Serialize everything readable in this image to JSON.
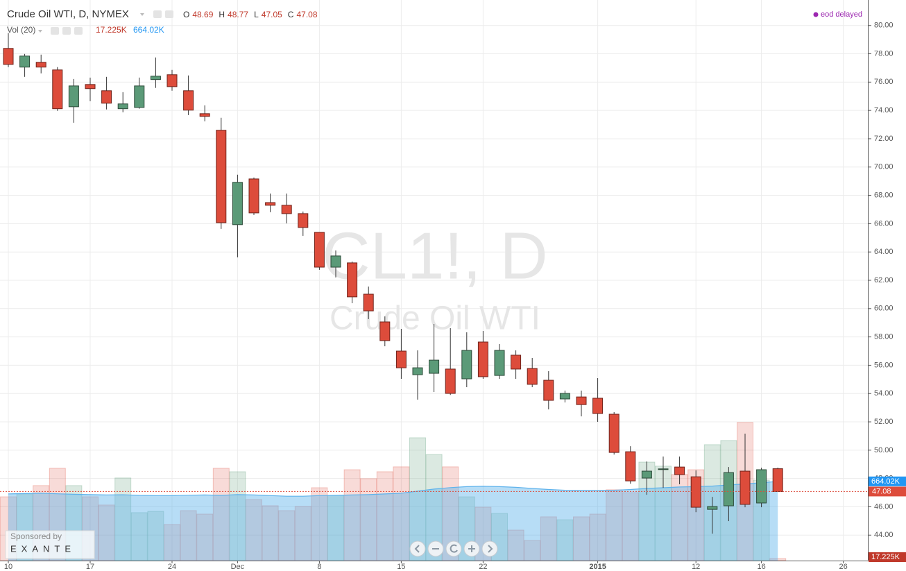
{
  "chart_data": {
    "type": "candlestick",
    "title": "Crude Oil WTI, D, NYMEX",
    "watermark": "CL1!, D",
    "watermark_subtitle": "Crude Oil WTI",
    "status": "eod delayed",
    "ohlc_letters": [
      "O",
      "H",
      "L",
      "C"
    ],
    "sponsor": "Sponsored by",
    "sponsor_name": "EXANTE",
    "categories": [
      "10",
      null,
      null,
      null,
      null,
      "17",
      null,
      null,
      null,
      null,
      "24",
      null,
      null,
      null,
      "Dec",
      null,
      null,
      null,
      null,
      "8",
      null,
      null,
      null,
      null,
      "15",
      null,
      null,
      null,
      null,
      "22",
      null,
      null,
      null,
      null,
      null,
      null,
      "2015",
      null,
      null,
      null,
      null,
      null,
      "12",
      null,
      null,
      null,
      "16",
      null,
      null,
      null,
      null,
      "26"
    ],
    "open": [
      78.38,
      77.06,
      77.4,
      76.86,
      74.26,
      75.83,
      75.39,
      74.12,
      74.21,
      76.18,
      76.52,
      75.39,
      73.77,
      72.6,
      65.93,
      69.16,
      67.49,
      67.3,
      66.71,
      65.39,
      62.93,
      63.23,
      61.02,
      59.06,
      57.0,
      55.33,
      55.43,
      55.73,
      55.04,
      57.64,
      55.28,
      56.71,
      55.77,
      54.94,
      53.62,
      53.76,
      53.67,
      52.54,
      49.89,
      48.03,
      48.63,
      48.81,
      48.12,
      45.82,
      46.07,
      48.52,
      46.27,
      48.69,
      null,
      null,
      null,
      null
    ],
    "high": [
      79.46,
      77.99,
      77.94,
      77.06,
      76.22,
      76.32,
      76.37,
      75.29,
      76.32,
      77.74,
      76.86,
      76.47,
      74.36,
      73.48,
      69.46,
      69.26,
      68.13,
      68.13,
      66.86,
      65.39,
      64.11,
      63.33,
      61.56,
      59.45,
      58.57,
      57.05,
      58.91,
      58.62,
      58.33,
      58.42,
      57.49,
      57.05,
      56.51,
      55.58,
      54.21,
      54.21,
      55.09,
      52.69,
      50.28,
      49.2,
      49.55,
      49.55,
      48.57,
      46.7,
      48.81,
      51.17,
      48.76,
      48.77,
      null,
      null,
      null,
      null
    ],
    "low": [
      77.06,
      76.37,
      76.62,
      73.97,
      73.13,
      74.65,
      74.07,
      73.87,
      74.12,
      75.59,
      75.39,
      73.67,
      73.23,
      65.63,
      63.62,
      66.61,
      66.81,
      66.02,
      65.14,
      62.74,
      62.2,
      60.38,
      59.26,
      57.34,
      55.04,
      53.57,
      54.11,
      53.9,
      54.45,
      55.04,
      55.04,
      55.04,
      54.45,
      52.88,
      53.37,
      52.39,
      52.0,
      49.69,
      47.63,
      46.85,
      47.34,
      47.59,
      45.62,
      44.1,
      44.99,
      45.97,
      45.97,
      47.05,
      null,
      null,
      null,
      null
    ],
    "close": [
      77.25,
      77.84,
      77.06,
      74.12,
      75.73,
      75.54,
      74.51,
      74.46,
      75.73,
      76.42,
      75.68,
      74.02,
      73.58,
      66.07,
      68.92,
      66.76,
      67.3,
      66.71,
      65.73,
      62.93,
      63.72,
      60.83,
      59.84,
      57.74,
      55.82,
      55.82,
      56.36,
      54.01,
      57.05,
      55.19,
      57.05,
      55.73,
      54.65,
      53.52,
      54.01,
      53.22,
      52.59,
      49.84,
      47.83,
      48.52,
      48.68,
      48.27,
      45.97,
      46.02,
      48.42,
      46.17,
      48.62,
      47.08,
      null,
      null,
      null,
      null
    ],
    "up_color": "#5b9a78",
    "down_color": "#dd4c3b",
    "ylim": [
      42.2,
      81.8
    ],
    "yticks": [
      {
        "value": 44,
        "label": "44.00"
      },
      {
        "value": 46,
        "label": "46.00"
      },
      {
        "value": 48,
        "label": "48.00"
      },
      {
        "value": 50,
        "label": "50.00"
      },
      {
        "value": 52,
        "label": "52.00"
      },
      {
        "value": 54,
        "label": "54.00"
      },
      {
        "value": 56,
        "label": "56.00"
      },
      {
        "value": 58,
        "label": "58.00"
      },
      {
        "value": 60,
        "label": "60.00"
      },
      {
        "value": 62,
        "label": "62.00"
      },
      {
        "value": 64,
        "label": "64.00"
      },
      {
        "value": 66,
        "label": "66.00"
      },
      {
        "value": 68,
        "label": "68.00"
      },
      {
        "value": 70,
        "label": "70.00"
      },
      {
        "value": 72,
        "label": "72.00"
      },
      {
        "value": 74,
        "label": "74.00"
      },
      {
        "value": 76,
        "label": "76.00"
      },
      {
        "value": 78,
        "label": "78.00"
      },
      {
        "value": 80,
        "label": "80.00"
      }
    ],
    "grid": true,
    "volume": {
      "name": "Vol (20)",
      "values": [
        535,
        559,
        629,
        774,
        629,
        535,
        466,
        693,
        402,
        413,
        303,
        419,
        390,
        774,
        745,
        512,
        460,
        419,
        454,
        611,
        547,
        762,
        687,
        745,
        786,
        1030,
        890,
        786,
        535,
        448,
        396,
        256,
        169,
        367,
        343,
        367,
        390,
        594,
        570,
        826,
        792,
        722,
        762,
        972,
        1007,
        1158,
        675,
        17.225,
        null,
        null,
        null,
        null
      ],
      "value_labels": [
        null,
        null,
        null,
        null,
        null,
        null,
        null,
        null,
        null,
        null,
        null,
        null,
        null,
        null,
        null,
        null,
        null,
        null,
        null,
        null,
        null,
        null,
        null,
        null,
        null,
        null,
        null,
        null,
        null,
        null,
        null,
        null,
        null,
        null,
        null,
        null,
        null,
        null,
        null,
        null,
        null,
        null,
        null,
        null,
        null,
        null,
        null,
        "17.225K",
        null,
        null,
        null,
        null
      ],
      "ma_values": [
        559,
        562,
        565,
        560,
        556,
        553,
        550,
        552,
        547,
        545,
        545,
        548,
        550,
        547,
        553,
        550,
        545,
        540,
        540,
        545,
        547,
        550,
        553,
        559,
        565,
        582,
        600,
        612,
        620,
        623,
        620,
        614,
        605,
        596,
        590,
        588,
        588,
        590,
        596,
        605,
        611,
        617,
        620,
        625,
        634,
        643,
        652,
        664.02,
        null,
        null,
        null,
        null
      ],
      "ma_value_labels": [
        null,
        null,
        null,
        null,
        null,
        null,
        null,
        null,
        null,
        null,
        null,
        null,
        null,
        null,
        null,
        null,
        null,
        null,
        null,
        null,
        null,
        null,
        null,
        null,
        null,
        null,
        null,
        null,
        null,
        null,
        null,
        null,
        null,
        null,
        null,
        null,
        null,
        null,
        null,
        null,
        null,
        null,
        null,
        null,
        null,
        null,
        null,
        "664.02K",
        null,
        null,
        null,
        null
      ],
      "ma_color": "#5fb3ec",
      "vlim": [
        0,
        4700
      ]
    }
  }
}
